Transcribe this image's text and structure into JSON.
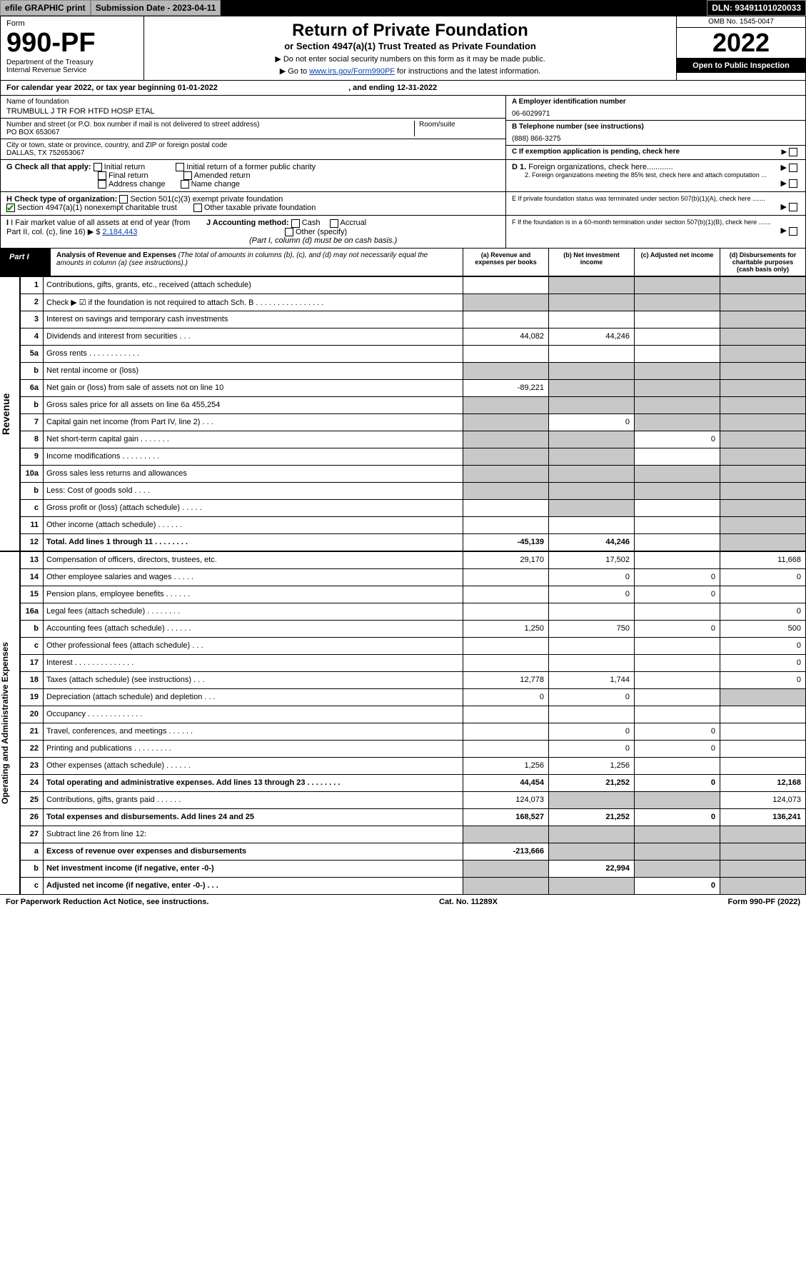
{
  "top": {
    "efile": "efile GRAPHIC print",
    "subdate_lbl": "Submission Date - 2023-04-11",
    "dln_lbl": "DLN: 93491101020033"
  },
  "head": {
    "form": "Form",
    "formno": "990-PF",
    "dept": "Department of the Treasury",
    "irs": "Internal Revenue Service",
    "title": "Return of Private Foundation",
    "sub": "or Section 4947(a)(1) Trust Treated as Private Foundation",
    "note1": "▶ Do not enter social security numbers on this form as it may be made public.",
    "note2_pre": "▶ Go to ",
    "note2_link": "www.irs.gov/Form990PF",
    "note2_post": " for instructions and the latest information.",
    "omb": "OMB No. 1545-0047",
    "year": "2022",
    "open": "Open to Public Inspection"
  },
  "cal": "For calendar year 2022, or tax year beginning 01-01-2022",
  "cal_end": ", and ending 12-31-2022",
  "id": {
    "name_lbl": "Name of foundation",
    "name": "TRUMBULL J TR FOR HTFD HOSP ETAL",
    "addr_lbl": "Number and street (or P.O. box number if mail is not delivered to street address)",
    "addr": "PO BOX 653067",
    "room_lbl": "Room/suite",
    "city_lbl": "City or town, state or province, country, and ZIP or foreign postal code",
    "city": "DALLAS, TX  752653067",
    "ein_lbl": "A Employer identification number",
    "ein": "06-6029971",
    "tel_lbl": "B Telephone number (see instructions)",
    "tel": "(888) 866-3275",
    "c_lbl": "C If exemption application is pending, check here",
    "d1": "D 1. Foreign organizations, check here............",
    "d2": "2. Foreign organizations meeting the 85% test, check here and attach computation ...",
    "e": "E  If private foundation status was terminated under section 507(b)(1)(A), check here .......",
    "f": "F  If the foundation is in a 60-month termination under section 507(b)(1)(B), check here .......",
    "g_lbl": "G Check all that apply:",
    "g_opts": [
      "Initial return",
      "Final return",
      "Address change",
      "Initial return of a former public charity",
      "Amended return",
      "Name change"
    ],
    "h_lbl": "H Check type of organization:",
    "h1": "Section 501(c)(3) exempt private foundation",
    "h2": "Section 4947(a)(1) nonexempt charitable trust",
    "h3": "Other taxable private foundation",
    "i_lbl": "I Fair market value of all assets at end of year (from Part II, col. (c), line 16) ▶ $",
    "i_val": "2,184,443",
    "j_lbl": "J Accounting method:",
    "j_opts": [
      "Cash",
      "Accrual"
    ],
    "j_other": "Other (specify)",
    "j_note": "(Part I, column (d) must be on cash basis.)"
  },
  "part1": {
    "tab": "Part I",
    "title": "Analysis of Revenue and Expenses",
    "desc": "(The total of amounts in columns (b), (c), and (d) may not necessarily equal the amounts in column (a) (see instructions).)",
    "cols": [
      "(a)  Revenue and expenses per books",
      "(b)  Net investment income",
      "(c)  Adjusted net income",
      "(d)  Disbursements for charitable purposes (cash basis only)"
    ]
  },
  "side_rev": "Revenue",
  "side_exp": "Operating and Administrative Expenses",
  "rows_rev": [
    {
      "n": "1",
      "l": "Contributions, gifts, grants, etc., received (attach schedule)",
      "a": "",
      "b": "g",
      "c": "g",
      "d": "g"
    },
    {
      "n": "2",
      "l": "Check ▶ ☑ if the foundation is not required to attach Sch. B  .  .  .  .  .  .  .  .  .  .  .  .  .  .  .  .",
      "a": "g",
      "b": "g",
      "c": "g",
      "d": "g"
    },
    {
      "n": "3",
      "l": "Interest on savings and temporary cash investments",
      "a": "",
      "b": "",
      "c": "",
      "d": "g"
    },
    {
      "n": "4",
      "l": "Dividends and interest from securities  .  .  .",
      "a": "44,082",
      "b": "44,246",
      "c": "",
      "d": "g"
    },
    {
      "n": "5a",
      "l": "Gross rents  .  .  .  .  .  .  .  .  .  .  .  .",
      "a": "",
      "b": "",
      "c": "",
      "d": "g"
    },
    {
      "n": "b",
      "l": "Net rental income or (loss)  ",
      "a": "g",
      "b": "g",
      "c": "g",
      "d": "g"
    },
    {
      "n": "6a",
      "l": "Net gain or (loss) from sale of assets not on line 10",
      "a": "-89,221",
      "b": "g",
      "c": "g",
      "d": "g"
    },
    {
      "n": "b",
      "l": "Gross sales price for all assets on line 6a            455,254",
      "a": "g",
      "b": "g",
      "c": "g",
      "d": "g"
    },
    {
      "n": "7",
      "l": "Capital gain net income (from Part IV, line 2)  .  .  .",
      "a": "g",
      "b": "0",
      "c": "g",
      "d": "g"
    },
    {
      "n": "8",
      "l": "Net short-term capital gain  .  .  .  .  .  .  .",
      "a": "g",
      "b": "g",
      "c": "0",
      "d": "g"
    },
    {
      "n": "9",
      "l": "Income modifications  .  .  .  .  .  .  .  .  .",
      "a": "g",
      "b": "g",
      "c": "",
      "d": "g"
    },
    {
      "n": "10a",
      "l": "Gross sales less returns and allowances",
      "a": "g",
      "b": "g",
      "c": "g",
      "d": "g"
    },
    {
      "n": "b",
      "l": "Less: Cost of goods sold  .  .  .  .",
      "a": "g",
      "b": "g",
      "c": "g",
      "d": "g"
    },
    {
      "n": "c",
      "l": "Gross profit or (loss) (attach schedule)  .  .  .  .  .",
      "a": "",
      "b": "g",
      "c": "",
      "d": "g"
    },
    {
      "n": "11",
      "l": "Other income (attach schedule)  .  .  .  .  .  .",
      "a": "",
      "b": "",
      "c": "",
      "d": "g"
    },
    {
      "n": "12",
      "l": "Total. Add lines 1 through 11  .  .  .  .  .  .  .  .",
      "a": "-45,139",
      "b": "44,246",
      "c": "",
      "d": "g",
      "bold": true
    }
  ],
  "rows_exp": [
    {
      "n": "13",
      "l": "Compensation of officers, directors, trustees, etc.",
      "a": "29,170",
      "b": "17,502",
      "c": "",
      "d": "11,668"
    },
    {
      "n": "14",
      "l": "Other employee salaries and wages  .  .  .  .  .",
      "a": "",
      "b": "0",
      "c": "0",
      "d": "0"
    },
    {
      "n": "15",
      "l": "Pension plans, employee benefits  .  .  .  .  .  .",
      "a": "",
      "b": "0",
      "c": "0",
      "d": ""
    },
    {
      "n": "16a",
      "l": "Legal fees (attach schedule)  .  .  .  .  .  .  .  .",
      "a": "",
      "b": "",
      "c": "",
      "d": "0"
    },
    {
      "n": "b",
      "l": "Accounting fees (attach schedule)  .  .  .  .  .  .",
      "a": "1,250",
      "b": "750",
      "c": "0",
      "d": "500"
    },
    {
      "n": "c",
      "l": "Other professional fees (attach schedule)  .  .  .",
      "a": "",
      "b": "",
      "c": "",
      "d": "0"
    },
    {
      "n": "17",
      "l": "Interest  .  .  .  .  .  .  .  .  .  .  .  .  .  .",
      "a": "",
      "b": "",
      "c": "",
      "d": "0"
    },
    {
      "n": "18",
      "l": "Taxes (attach schedule) (see instructions)  .  .  .",
      "a": "12,778",
      "b": "1,744",
      "c": "",
      "d": "0"
    },
    {
      "n": "19",
      "l": "Depreciation (attach schedule) and depletion  .  .  .",
      "a": "0",
      "b": "0",
      "c": "",
      "d": "g"
    },
    {
      "n": "20",
      "l": "Occupancy  .  .  .  .  .  .  .  .  .  .  .  .  .",
      "a": "",
      "b": "",
      "c": "",
      "d": ""
    },
    {
      "n": "21",
      "l": "Travel, conferences, and meetings  .  .  .  .  .  .",
      "a": "",
      "b": "0",
      "c": "0",
      "d": ""
    },
    {
      "n": "22",
      "l": "Printing and publications  .  .  .  .  .  .  .  .  .",
      "a": "",
      "b": "0",
      "c": "0",
      "d": ""
    },
    {
      "n": "23",
      "l": "Other expenses (attach schedule)  .  .  .  .  .  .",
      "a": "1,256",
      "b": "1,256",
      "c": "",
      "d": ""
    },
    {
      "n": "24",
      "l": "Total operating and administrative expenses. Add lines 13 through 23  .  .  .  .  .  .  .  .",
      "a": "44,454",
      "b": "21,252",
      "c": "0",
      "d": "12,168",
      "bold": true
    },
    {
      "n": "25",
      "l": "Contributions, gifts, grants paid  .  .  .  .  .  .",
      "a": "124,073",
      "b": "g",
      "c": "g",
      "d": "124,073"
    },
    {
      "n": "26",
      "l": "Total expenses and disbursements. Add lines 24 and 25",
      "a": "168,527",
      "b": "21,252",
      "c": "0",
      "d": "136,241",
      "bold": true
    },
    {
      "n": "27",
      "l": "Subtract line 26 from line 12:",
      "a": "g",
      "b": "g",
      "c": "g",
      "d": "g"
    },
    {
      "n": "a",
      "l": "Excess of revenue over expenses and disbursements",
      "a": "-213,666",
      "b": "g",
      "c": "g",
      "d": "g",
      "bold": true
    },
    {
      "n": "b",
      "l": "Net investment income (if negative, enter -0-)",
      "a": "g",
      "b": "22,994",
      "c": "g",
      "d": "g",
      "bold": true
    },
    {
      "n": "c",
      "l": "Adjusted net income (if negative, enter -0-)  .  .  .",
      "a": "g",
      "b": "g",
      "c": "0",
      "d": "g",
      "bold": true
    }
  ],
  "footer": {
    "pra": "For Paperwork Reduction Act Notice, see instructions.",
    "cat": "Cat. No. 11289X",
    "form": "Form 990-PF (2022)"
  }
}
